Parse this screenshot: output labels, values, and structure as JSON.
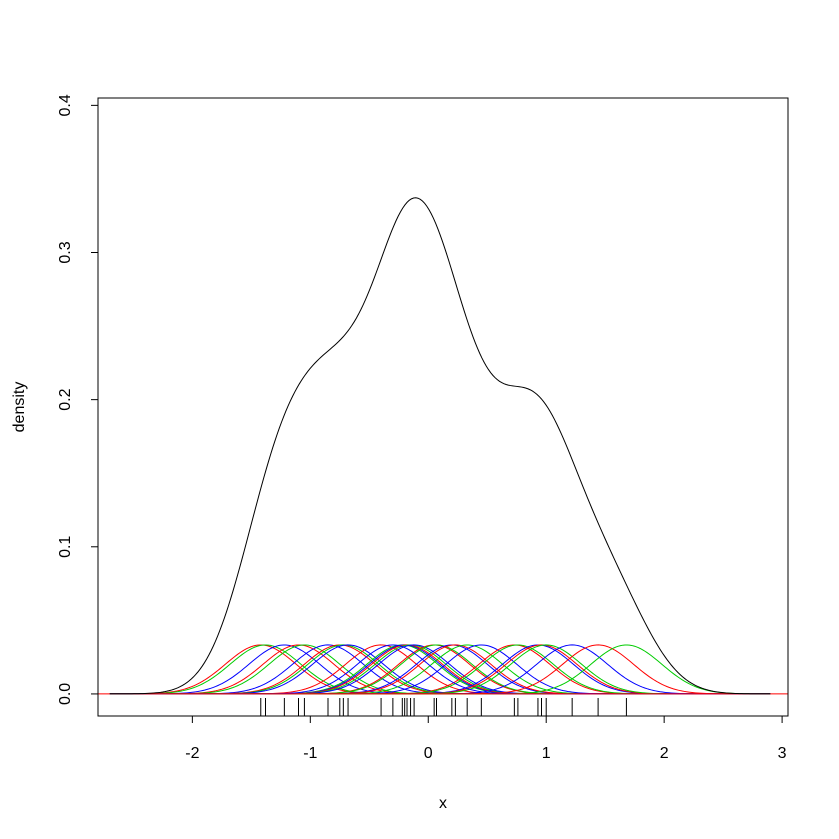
{
  "chart_data": {
    "type": "line",
    "title": "",
    "xlabel": "x",
    "ylabel": "density",
    "xlim": [
      -2.8,
      3.05
    ],
    "ylim": [
      -0.015,
      0.405
    ],
    "x_ticks": [
      -2,
      -1,
      0,
      1,
      2,
      3
    ],
    "x_tick_labels": [
      "-2",
      "-1",
      "0",
      "1",
      "2",
      "3"
    ],
    "y_ticks": [
      0.0,
      0.1,
      0.2,
      0.3,
      0.4
    ],
    "y_tick_labels": [
      "0.0",
      "0.1",
      "0.2",
      "0.3",
      "0.4"
    ],
    "bandwidth": 0.3,
    "kernel_peak": 0.0333,
    "observations": [
      -1.42,
      -1.38,
      -1.22,
      -1.1,
      -1.05,
      -0.85,
      -0.75,
      -0.72,
      -0.68,
      -0.4,
      -0.22,
      -0.2,
      -0.18,
      -0.15,
      -0.12,
      0.05,
      0.07,
      0.2,
      0.23,
      0.33,
      0.45,
      0.73,
      0.76,
      0.93,
      0.96,
      1.0,
      1.22,
      1.44,
      1.68,
      -0.3
    ],
    "kernel_colors": [
      "#ff0000",
      "#00cc00",
      "#0000ff"
    ],
    "density_color": "#000000",
    "baseline_color": "#ff0000",
    "grid": false
  }
}
